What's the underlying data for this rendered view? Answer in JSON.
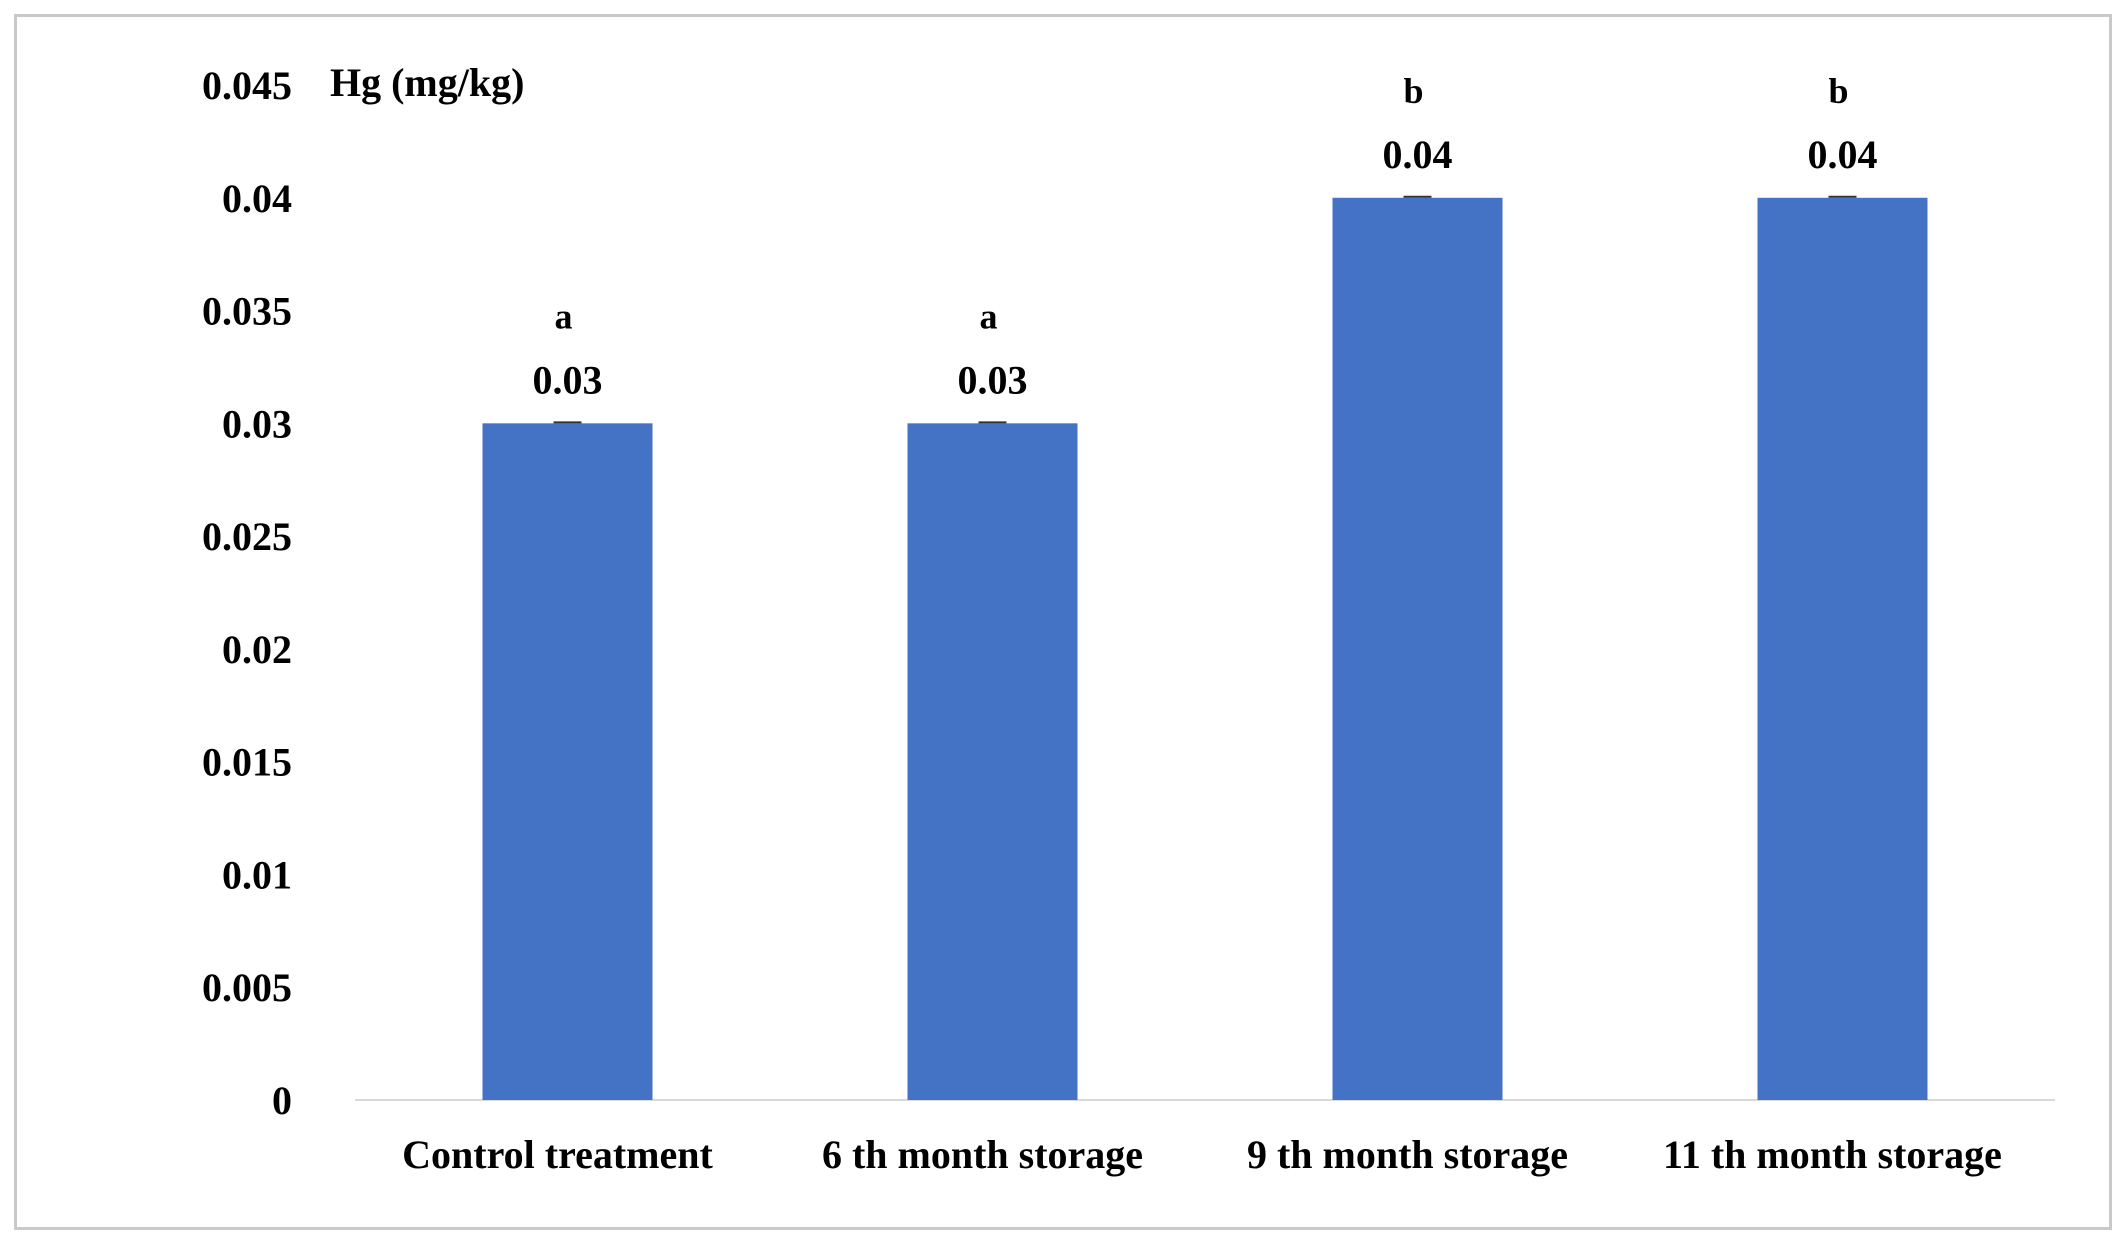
{
  "chart_data": {
    "type": "bar",
    "ylabel": "Hg (mg/kg)",
    "ylim": [
      0,
      0.045
    ],
    "yticks": [
      "0",
      "0.005",
      "0.01",
      "0.015",
      "0.02",
      "0.025",
      "0.03",
      "0.035",
      "0.04",
      "0.045"
    ],
    "categories": [
      "Control treatment",
      "6 th month storage",
      "9 th month storage",
      "11 th  month storage"
    ],
    "values": [
      0.03,
      0.03,
      0.04,
      0.04
    ],
    "value_labels": [
      "0.03",
      "0.03",
      "0.04",
      "0.04"
    ],
    "significance_letters": [
      "a",
      "a",
      "b",
      "b"
    ],
    "bar_color": "#4472c4",
    "grid": false,
    "legend": "none"
  }
}
